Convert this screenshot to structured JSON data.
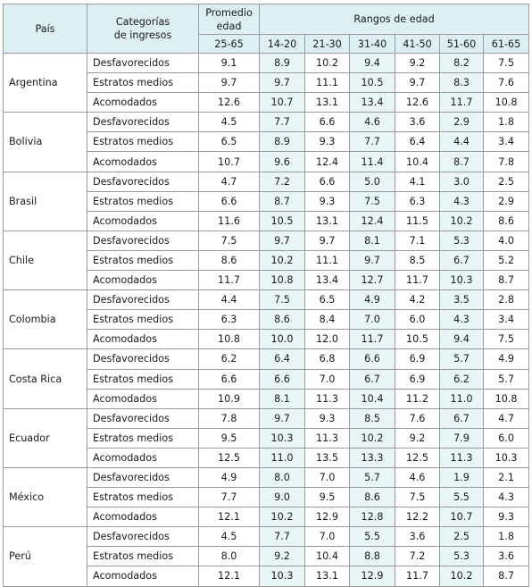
{
  "header": {
    "pais": "País",
    "categorias": [
      "Categorías",
      "de ingresos"
    ],
    "promedio": [
      "Promedio",
      "edad"
    ],
    "promedio_range": "25-65",
    "rangos": "Rangos de edad",
    "age_groups": [
      "14-20",
      "21-30",
      "31-40",
      "41-50",
      "51-60",
      "61-65"
    ]
  },
  "countries": [
    {
      "name": "Argentina",
      "rows": [
        {
          "category": "Desfavorecidos",
          "avg": "9.1",
          "values": [
            "8.9",
            "10.2",
            "9.4",
            "9.2",
            "8.2",
            "7.5"
          ]
        },
        {
          "category": "Estratos medios",
          "avg": "9.7",
          "values": [
            "9.7",
            "11.1",
            "10.5",
            "9.7",
            "8.3",
            "7.6"
          ]
        },
        {
          "category": "Acomodados",
          "avg": "12.6",
          "values": [
            "10.7",
            "13.1",
            "13.4",
            "12.6",
            "11.7",
            "10.8"
          ]
        }
      ]
    },
    {
      "name": "Bolivia",
      "rows": [
        {
          "category": "Desfavorecidos",
          "avg": "4.5",
          "values": [
            "7.7",
            "6.6",
            "4.6",
            "3.6",
            "2.9",
            "1.8"
          ]
        },
        {
          "category": "Estratos medios",
          "avg": "6.5",
          "values": [
            "8.9",
            "9.3",
            "7.7",
            "6.4",
            "4.4",
            "3.4"
          ]
        },
        {
          "category": "Acomodados",
          "avg": "10.7",
          "values": [
            "9.6",
            "12.4",
            "11.4",
            "10.4",
            "8.7",
            "7.8"
          ]
        }
      ]
    },
    {
      "name": "Brasil",
      "rows": [
        {
          "category": "Desfavorecidos",
          "avg": "4.7",
          "values": [
            "7.2",
            "6.6",
            "5.0",
            "4.1",
            "3.0",
            "2.5"
          ]
        },
        {
          "category": "Estratos medios",
          "avg": "6.6",
          "values": [
            "8.7",
            "9.3",
            "7.5",
            "6.3",
            "4.3",
            "2.9"
          ]
        },
        {
          "category": "Acomodados",
          "avg": "11.6",
          "values": [
            "10.5",
            "13.1",
            "12.4",
            "11.5",
            "10.2",
            "8.6"
          ]
        }
      ]
    },
    {
      "name": "Chile",
      "rows": [
        {
          "category": "Desfavorecidos",
          "avg": "7.5",
          "values": [
            "9.7",
            "9.7",
            "8.1",
            "7.1",
            "5.3",
            "4.0"
          ]
        },
        {
          "category": "Estratos medios",
          "avg": "8.6",
          "values": [
            "10.2",
            "11.1",
            "9.7",
            "8.5",
            "6.7",
            "5.2"
          ]
        },
        {
          "category": "Acomodados",
          "avg": "11.7",
          "values": [
            "10.8",
            "13.4",
            "12.7",
            "11.7",
            "10.3",
            "8.7"
          ]
        }
      ]
    },
    {
      "name": "Colombia",
      "rows": [
        {
          "category": "Desfavorecidos",
          "avg": "4.4",
          "values": [
            "7.5",
            "6.5",
            "4.9",
            "4.2",
            "3.5",
            "2.8"
          ]
        },
        {
          "category": "Estratos medios",
          "avg": "6.3",
          "values": [
            "8.6",
            "8.4",
            "7.0",
            "6.0",
            "4.3",
            "3.4"
          ]
        },
        {
          "category": "Acomodados",
          "avg": "10.8",
          "values": [
            "10.0",
            "12.0",
            "11.7",
            "10.5",
            "9.4",
            "7.5"
          ]
        }
      ]
    },
    {
      "name": "Costa Rica",
      "rows": [
        {
          "category": "Desfavorecidos",
          "avg": "6.2",
          "values": [
            "6.4",
            "6.8",
            "6.6",
            "6.9",
            "5.7",
            "4.9"
          ]
        },
        {
          "category": "Estratos medios",
          "avg": "6.6",
          "values": [
            "6.6",
            "7.0",
            "6.7",
            "6.9",
            "6.2",
            "5.7"
          ]
        },
        {
          "category": "Acomodados",
          "avg": "10.9",
          "values": [
            "8.1",
            "11.3",
            "10.4",
            "11.2",
            "11.0",
            "10.8"
          ]
        }
      ]
    },
    {
      "name": "Ecuador",
      "rows": [
        {
          "category": "Desfavorecidos",
          "avg": "7.8",
          "values": [
            "9.7",
            "9.3",
            "8.5",
            "7.6",
            "6.7",
            "4.7"
          ]
        },
        {
          "category": "Estratos medios",
          "avg": "9.5",
          "values": [
            "10.3",
            "11.3",
            "10.2",
            "9.2",
            "7.9",
            "6.0"
          ]
        },
        {
          "category": "Acomodados",
          "avg": "12.5",
          "values": [
            "11.0",
            "13.5",
            "13.3",
            "12.5",
            "11.3",
            "10.3"
          ]
        }
      ]
    },
    {
      "name": "México",
      "rows": [
        {
          "category": "Desfavorecidos",
          "avg": "4.9",
          "values": [
            "8.0",
            "7.0",
            "5.7",
            "4.6",
            "1.9",
            "2.1"
          ]
        },
        {
          "category": "Estratos medios",
          "avg": "7.7",
          "values": [
            "9.0",
            "9.5",
            "8.6",
            "7.5",
            "5.5",
            "4.3"
          ]
        },
        {
          "category": "Acomodados",
          "avg": "12.1",
          "values": [
            "10.2",
            "12.9",
            "12.8",
            "12.2",
            "10.7",
            "9.3"
          ]
        }
      ]
    },
    {
      "name": "Perú",
      "rows": [
        {
          "category": "Desfavorecidos",
          "avg": "4.5",
          "values": [
            "7.7",
            "7.0",
            "5.5",
            "3.6",
            "2.5",
            "1.8"
          ]
        },
        {
          "category": "Estratos medios",
          "avg": "8.0",
          "values": [
            "9.2",
            "10.4",
            "8.8",
            "7.2",
            "5.3",
            "3.6"
          ]
        },
        {
          "category": "Acomodados",
          "avg": "12.1",
          "values": [
            "10.3",
            "13.1",
            "12.9",
            "11.7",
            "10.2",
            "8.7"
          ]
        }
      ]
    }
  ]
}
